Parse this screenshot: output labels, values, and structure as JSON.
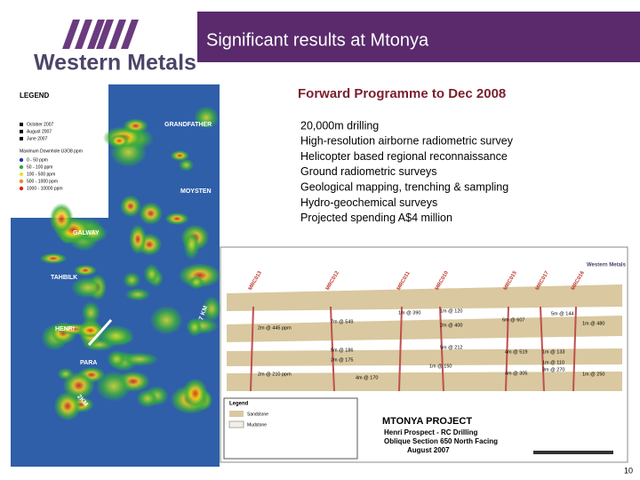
{
  "header": {
    "logo_text": "Western Metals",
    "title": "Significant results at Mtonya"
  },
  "map": {
    "legend_title": "LEGEND",
    "drill_items": [
      "October 2007",
      "August 2007",
      "June 2007"
    ],
    "grade_title": "Maximum Downhole U3O8 ppm",
    "grade_items": [
      "0 - 50 ppm",
      "50 - 100 ppm",
      "100 - 500 ppm",
      "500 - 1000 ppm",
      "1000 - 10000 ppm"
    ],
    "labels": [
      "GRANDFATHER",
      "MOYSTEN",
      "GALWAY",
      "TAHBILK",
      "HENRI",
      "PARA"
    ],
    "scale_labels": [
      "7 KM",
      "2KM"
    ]
  },
  "programme": {
    "title": "Forward Programme to Dec 2008",
    "items": [
      "20,000m drilling",
      "High-resolution airborne radiometric survey",
      "Helicopter based regional reconnaissance",
      "Ground radiometric surveys",
      "Geological mapping, trenching & sampling",
      "Hydro-geochemical surveys",
      "Projected spending A$4 million"
    ]
  },
  "section": {
    "logo_text": "Western Metals",
    "holes": [
      "MRC013",
      "MRC012",
      "MRC011",
      "MRC010",
      "MRC015",
      "MRC017",
      "MRC016"
    ],
    "intercepts": [
      "1m @ 390",
      "1m @ 120",
      "2m @ 400",
      "5m @ 144",
      "6m @ 607",
      "1m @ 480",
      "7m @ 549",
      "2m @ 445 ppm",
      "5m @ 186",
      "2m @ 175",
      "5m @ 212",
      "4m @ 519",
      "1m @ 133",
      "1m @ 110",
      "2m @ 210 ppm",
      "4m @ 170",
      "1m @ 150",
      "4m @ 305",
      "3m @ 270",
      "1m @ 250"
    ],
    "legend_title": "Legend",
    "legend_items": [
      "Sandstone",
      "Mudstone"
    ],
    "project": "MTONYA PROJECT",
    "subtitle": "Henri Prospect - RC Drilling",
    "section_name": "Oblique Section 650 North Facing",
    "date": "August 2007"
  },
  "page_number": "10"
}
